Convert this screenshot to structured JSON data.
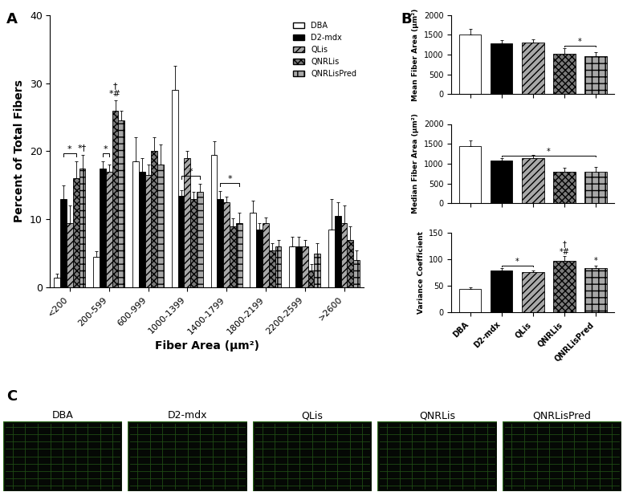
{
  "chart_data": [
    {
      "type": "grouped_bar",
      "panel": "A",
      "x_label": "Fiber Area (μm²)",
      "y_label": "Percent of Total Fibers",
      "categories": [
        "<200",
        "200-599",
        "600-999",
        "1000-1399",
        "1400-1799",
        "1800-2199",
        "2200-2599",
        ">2600"
      ],
      "series": [
        {
          "name": "DBA",
          "color": "#ffffff",
          "values": [
            1.5,
            4.5,
            18.5,
            29,
            19.5,
            11,
            6,
            8.5
          ],
          "errors": [
            0.5,
            0.8,
            3.5,
            3.5,
            2,
            1.8,
            1.5,
            4.5
          ]
        },
        {
          "name": "D2-mdx",
          "color": "#000000",
          "values": [
            13,
            17.5,
            17,
            13.5,
            13,
            8.5,
            6,
            10.5
          ],
          "errors": [
            2,
            1,
            2,
            0.8,
            1.2,
            1,
            1.5,
            2
          ]
        },
        {
          "name": "QLis",
          "color": "#a8a8a8",
          "values": [
            9.5,
            17,
            16.5,
            19,
            12.5,
            9.5,
            6,
            9.5
          ],
          "errors": [
            2.5,
            1,
            1.5,
            1,
            0.8,
            0.8,
            1,
            2.5
          ]
        },
        {
          "name": "QNRLis",
          "color": "#7a7a7a",
          "values": [
            16,
            26,
            20,
            13,
            9,
            5.5,
            2.5,
            7
          ],
          "errors": [
            2.5,
            1.5,
            2,
            1,
            1.2,
            1,
            1,
            2
          ]
        },
        {
          "name": "QNRLisPred",
          "color": "#a8a8a8",
          "values": [
            17.5,
            24.5,
            18,
            14,
            9.5,
            6,
            5,
            4
          ],
          "errors": [
            2,
            1.5,
            3,
            1.2,
            1.5,
            1,
            1.5,
            1.5
          ]
        }
      ],
      "ylim": [
        0,
        40
      ],
      "yticks": [
        0,
        10,
        20,
        30,
        40
      ],
      "legend": "upper right",
      "annotations": [
        {
          "text": "*",
          "category": "<200",
          "series": [
            "D2-mdx",
            "QNRLis"
          ]
        },
        {
          "text": "*†",
          "category": "<200",
          "series": [
            "QNRLisPred"
          ]
        },
        {
          "text": "*",
          "category": "200-599",
          "series": [
            "D2-mdx",
            "QLis"
          ]
        },
        {
          "text": "†\n*#",
          "category": "200-599",
          "series": [
            "QNRLis"
          ]
        },
        {
          "text": "*",
          "category": "1000-1399",
          "series": [
            "D2-mdx",
            "QNRLisPred"
          ]
        },
        {
          "text": "*",
          "category": "1400-1799",
          "series": [
            "D2-mdx",
            "QNRLisPred"
          ]
        }
      ]
    },
    {
      "type": "bar",
      "panel": "B",
      "y_label": "Mean Fiber Area (μm²)",
      "categories": [
        "DBA",
        "D2-mdx",
        "QLis",
        "QNRLis",
        "QNRLisPred"
      ],
      "values": [
        1500,
        1280,
        1310,
        1020,
        960
      ],
      "errors": [
        150,
        90,
        80,
        150,
        110
      ],
      "colors": [
        "#ffffff",
        "#000000",
        "#a8a8a8",
        "#7a7a7a",
        "#a8a8a8"
      ],
      "ylim": [
        0,
        2000
      ],
      "yticks": [
        0,
        500,
        1000,
        1500,
        2000
      ],
      "tick_labels": "y",
      "annotations": [
        {
          "text": "*",
          "categories": [
            "QNRLis",
            "QNRLisPred"
          ]
        }
      ]
    },
    {
      "type": "bar",
      "y_label": "Median Fiber Area (μm²)",
      "categories": [
        "DBA",
        "D2-mdx",
        "QLis",
        "QNRLis",
        "QNRLisPred"
      ],
      "values": [
        1440,
        1070,
        1150,
        790,
        790
      ],
      "errors": [
        140,
        80,
        70,
        110,
        120
      ],
      "colors": [
        "#ffffff",
        "#000000",
        "#a8a8a8",
        "#7a7a7a",
        "#a8a8a8"
      ],
      "ylim": [
        0,
        2000
      ],
      "yticks": [
        0,
        500,
        1000,
        1500,
        2000
      ],
      "tick_labels": "y",
      "annotations": [
        {
          "text": "*",
          "categories": [
            "D2-mdx",
            "QNRLisPred"
          ]
        }
      ]
    },
    {
      "type": "bar",
      "y_label": "Variance Coefficient",
      "categories": [
        "DBA",
        "D2-mdx",
        "QLis",
        "QNRLis",
        "QNRLisPred"
      ],
      "values": [
        44,
        80,
        76,
        97,
        84
      ],
      "errors": [
        3,
        4,
        3,
        9,
        5
      ],
      "colors": [
        "#ffffff",
        "#000000",
        "#a8a8a8",
        "#7a7a7a",
        "#a8a8a8"
      ],
      "ylim": [
        0,
        150
      ],
      "yticks": [
        0,
        50,
        100,
        150
      ],
      "annotations": [
        {
          "text": "*",
          "categories": [
            "D2-mdx",
            "QLis"
          ]
        },
        {
          "text": "†\n*#",
          "categories": [
            "QNRLis"
          ]
        },
        {
          "text": "*",
          "categories": [
            "QNRLisPred"
          ]
        }
      ]
    }
  ],
  "images": {
    "panel": "C",
    "titles": [
      "DBA",
      "D2-mdx",
      "QLis",
      "QNRLis",
      "QNRLisPred"
    ]
  }
}
